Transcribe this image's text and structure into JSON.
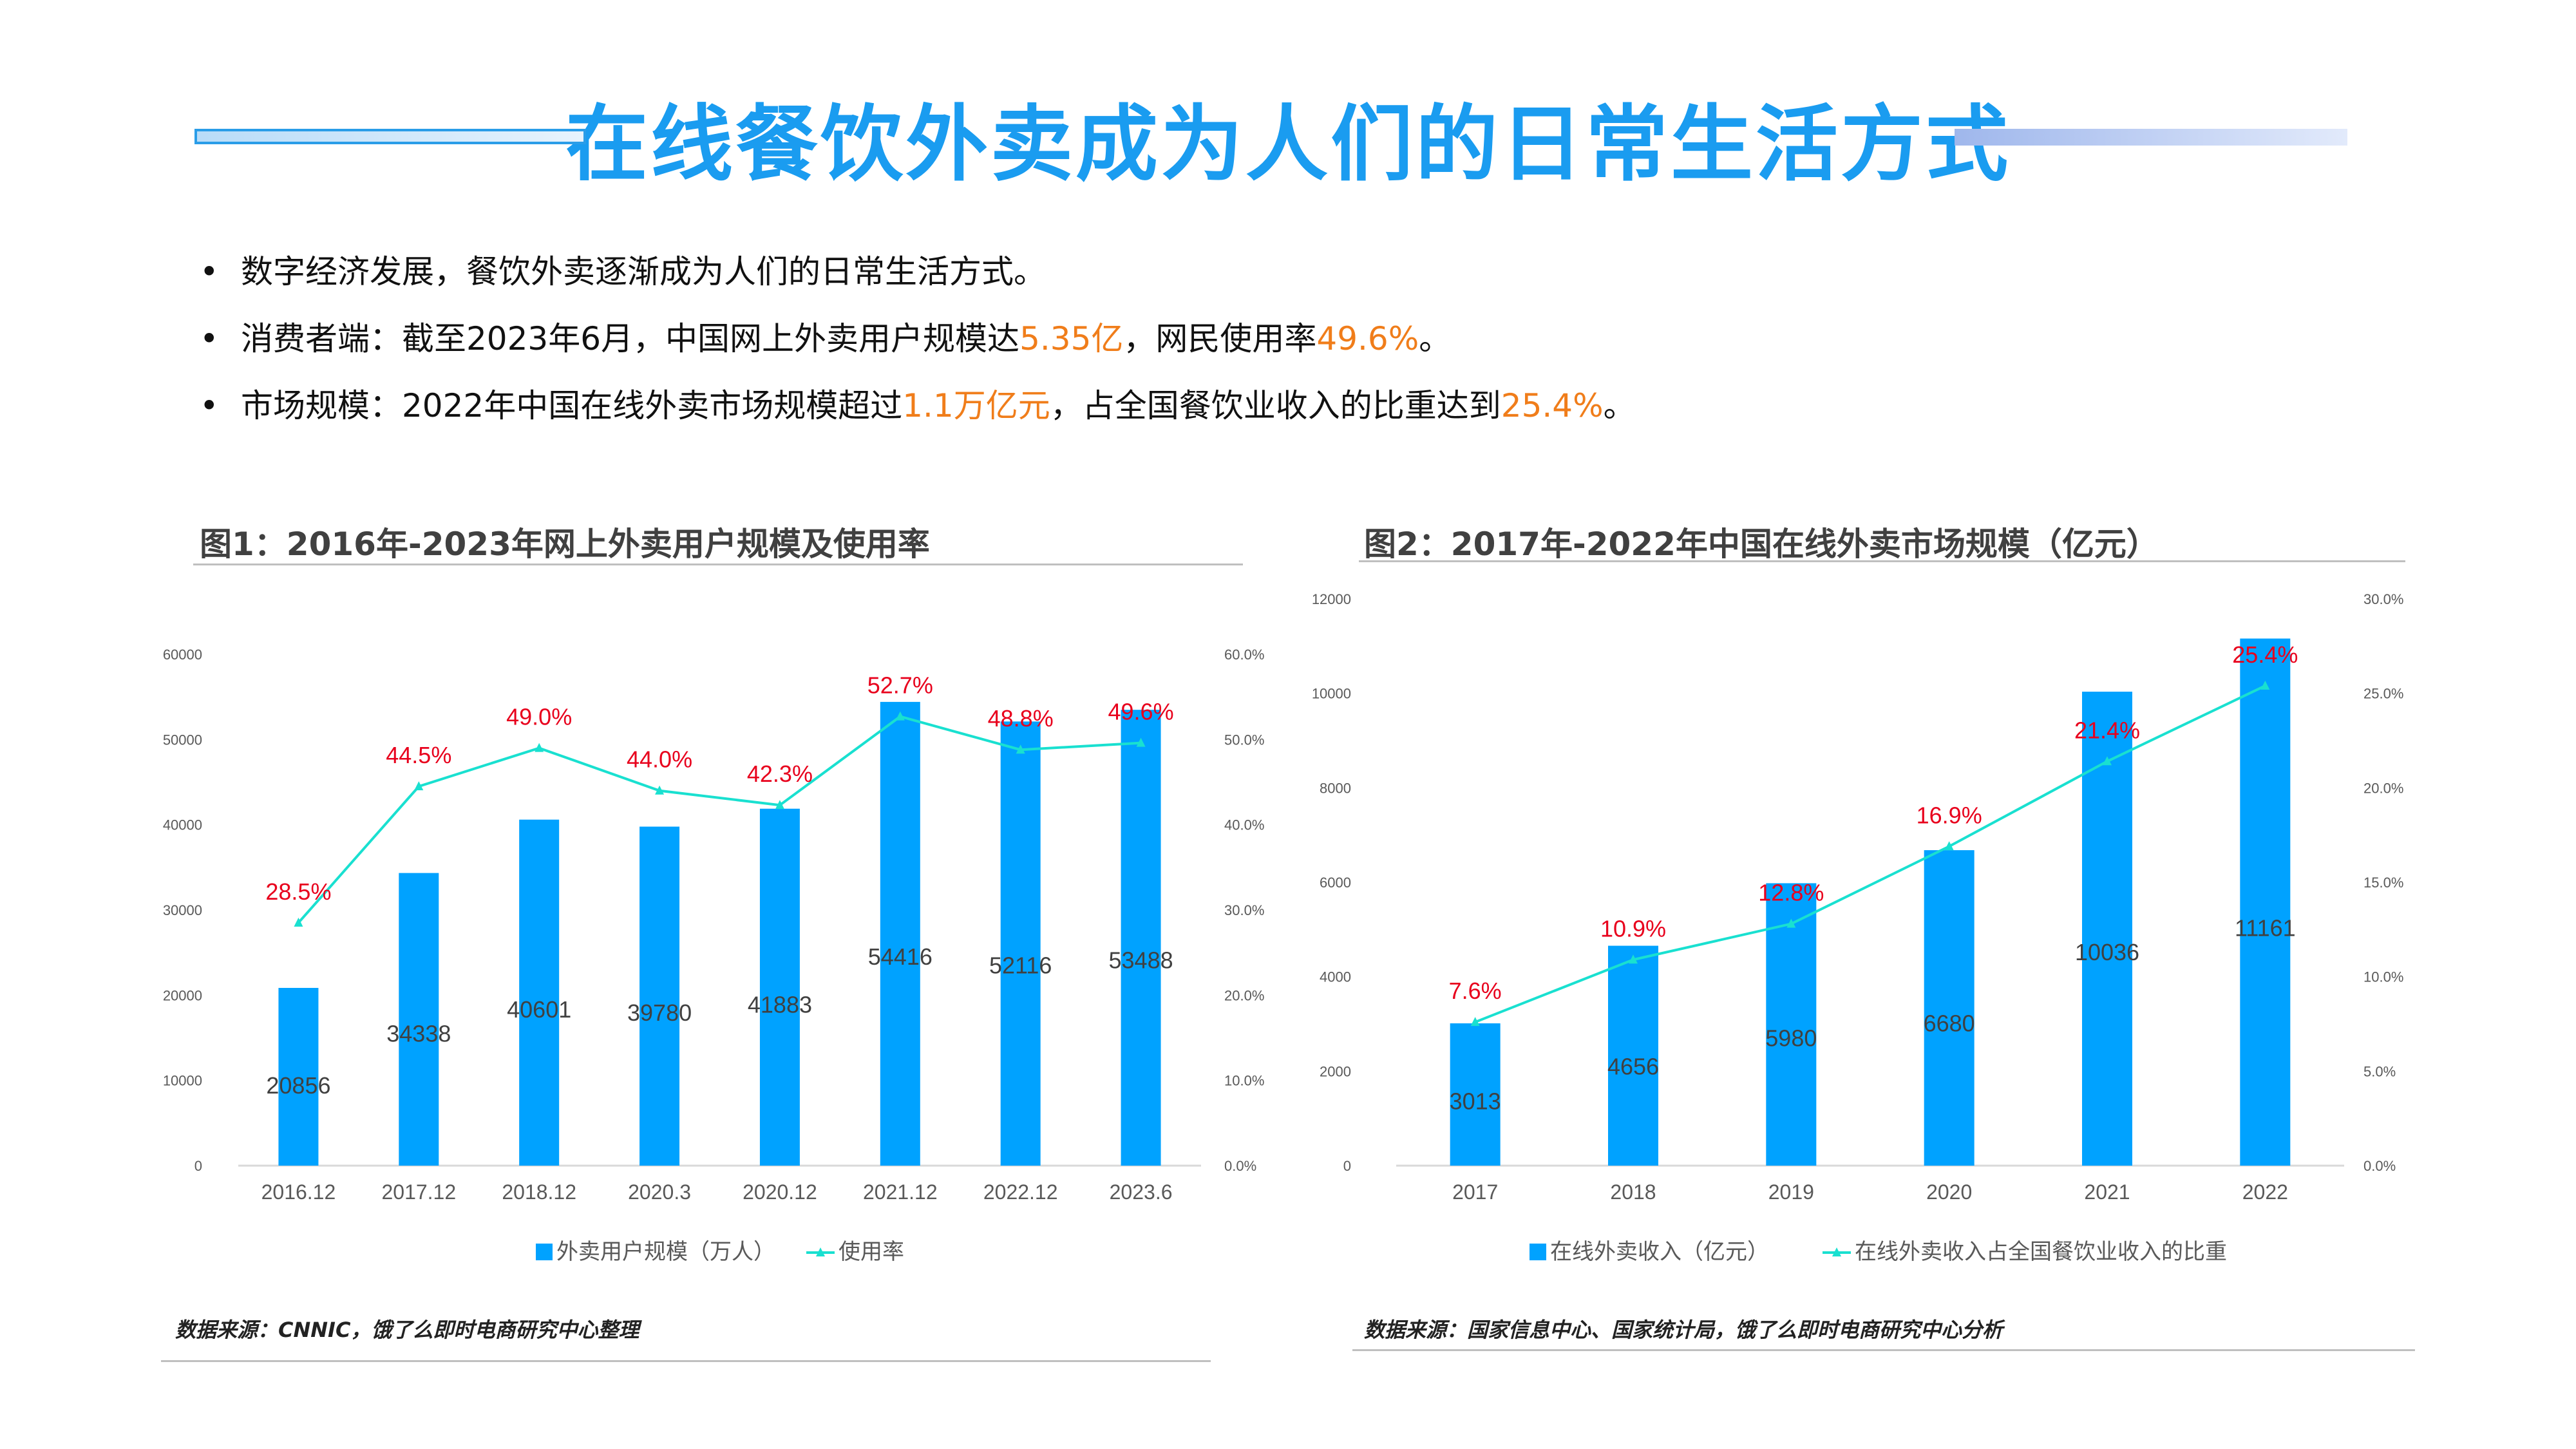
{
  "title": "在线餐饮外卖成为人们的日常生活方式",
  "bullets": [
    {
      "parts": [
        {
          "t": "数字经济发展，餐饮外卖逐渐成为人们的日常生活方式。",
          "hl": false
        }
      ]
    },
    {
      "parts": [
        {
          "t": "消费者端：截至2023年6月，中国网上外卖用户规模达",
          "hl": false
        },
        {
          "t": "5.35亿",
          "hl": true
        },
        {
          "t": "，网民使用率",
          "hl": false
        },
        {
          "t": "49.6%",
          "hl": true
        },
        {
          "t": "。",
          "hl": false
        }
      ]
    },
    {
      "parts": [
        {
          "t": "市场规模：2022年中国在线外卖市场规模超过",
          "hl": false
        },
        {
          "t": "1.1万亿元",
          "hl": true
        },
        {
          "t": "，占全国餐饮业收入的比重达到",
          "hl": false
        },
        {
          "t": "25.4%",
          "hl": true
        },
        {
          "t": "。",
          "hl": false
        }
      ]
    }
  ],
  "bullet_symbol": "•",
  "colors": {
    "title": "#1a9cf0",
    "bar": "#00a2ff",
    "line": "#19e0d0",
    "rate_label": "#e8001c",
    "highlight": "#f07d1a"
  },
  "charts": [
    {
      "heading": "图1：2016年-2023年网上外卖用户规模及使用率",
      "source": "数据来源：CNNIC，饿了么即时电商研究中心整理"
    },
    {
      "heading": "图2：2017年-2022年中国在线外卖市场规模（亿元）",
      "source": "数据来源：国家信息中心、国家统计局，饿了么即时电商研究中心分析"
    }
  ],
  "chart_data": [
    {
      "type": "bar",
      "title": "图1：2016年-2023年网上外卖用户规模及使用率",
      "categories": [
        "2016.12",
        "2017.12",
        "2018.12",
        "2020.3",
        "2020.12",
        "2021.12",
        "2022.12",
        "2023.6"
      ],
      "series": [
        {
          "name": "外卖用户规模（万人）",
          "type": "bar",
          "axis": "left",
          "values": [
            20856,
            34338,
            40601,
            39780,
            41883,
            54416,
            52116,
            53488
          ]
        },
        {
          "name": "使用率",
          "type": "line",
          "axis": "right",
          "values": [
            28.5,
            44.5,
            49.0,
            44.0,
            42.3,
            52.7,
            48.8,
            49.6
          ],
          "labels": [
            "28.5%",
            "44.5%",
            "49.0%",
            "44.0%",
            "42.3%",
            "52.7%",
            "48.8%",
            "49.6%"
          ]
        }
      ],
      "ylim": [
        0,
        60000
      ],
      "yticks": [
        "0",
        "10000",
        "20000",
        "30000",
        "40000",
        "50000",
        "60000"
      ],
      "y2lim": [
        0,
        60
      ],
      "y2ticks": [
        "0.0%",
        "10.0%",
        "20.0%",
        "30.0%",
        "40.0%",
        "50.0%",
        "60.0%"
      ],
      "legend": "bottom",
      "grid": false
    },
    {
      "type": "bar",
      "title": "图2：2017年-2022年中国在线外卖市场规模（亿元）",
      "categories": [
        "2017",
        "2018",
        "2019",
        "2020",
        "2021",
        "2022"
      ],
      "series": [
        {
          "name": "在线外卖收入（亿元）",
          "type": "bar",
          "axis": "left",
          "values": [
            3013,
            4656,
            5980,
            6680,
            10036,
            11161
          ]
        },
        {
          "name": "在线外卖收入占全国餐饮业收入的比重",
          "type": "line",
          "axis": "right",
          "values": [
            7.6,
            10.9,
            12.8,
            16.9,
            21.4,
            25.4
          ],
          "labels": [
            "7.6%",
            "10.9%",
            "12.8%",
            "16.9%",
            "21.4%",
            "25.4%"
          ]
        }
      ],
      "ylim": [
        0,
        12000
      ],
      "yticks": [
        "0",
        "2000",
        "4000",
        "6000",
        "8000",
        "10000",
        "12000"
      ],
      "y2lim": [
        0,
        30
      ],
      "y2ticks": [
        "0.0%",
        "5.0%",
        "10.0%",
        "15.0%",
        "20.0%",
        "25.0%",
        "30.0%"
      ],
      "legend": "bottom",
      "grid": false
    }
  ]
}
